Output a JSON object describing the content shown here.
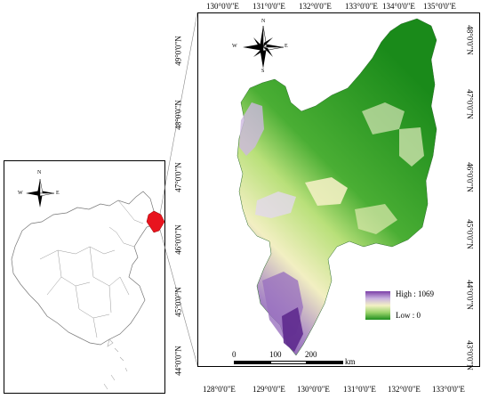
{
  "inset": {
    "compass": {
      "n": "N",
      "s": "S",
      "e": "E",
      "w": "W"
    }
  },
  "main": {
    "compass": {
      "n": "N",
      "s": "S",
      "e": "E",
      "w": "W"
    },
    "top_ticks": [
      "130°0'0\"E",
      "131°0'0\"E",
      "132°0'0\"E",
      "133°0'0\"E",
      "134°0'0\"E",
      "135°0'0\"E"
    ],
    "bottom_ticks": [
      "128°0'0\"E",
      "129°0'0\"E",
      "130°0'0\"E",
      "131°0'0\"E",
      "132°0'0\"E",
      "133°0'0\"E"
    ],
    "left_ticks": [
      "49°0'0\"N",
      "48°0'0\"N",
      "47°0'0\"N",
      "46°0'0\"N",
      "45°0'0\"N",
      "44°0'0\"N"
    ],
    "right_ticks": [
      "48°0'0\"N",
      "47°0'0\"N",
      "46°0'0\"N",
      "45°0'0\"N",
      "44°0'0\"N",
      "43°0'0\"N"
    ],
    "legend": {
      "high": "High : 1069",
      "low": "Low : 0"
    },
    "scalebar": {
      "labels": [
        "0",
        "100",
        "200"
      ],
      "unit": "km"
    },
    "colors": {
      "high": "#7b3fa8",
      "mid": "#f3f1c4",
      "low": "#1f8f1f"
    }
  }
}
